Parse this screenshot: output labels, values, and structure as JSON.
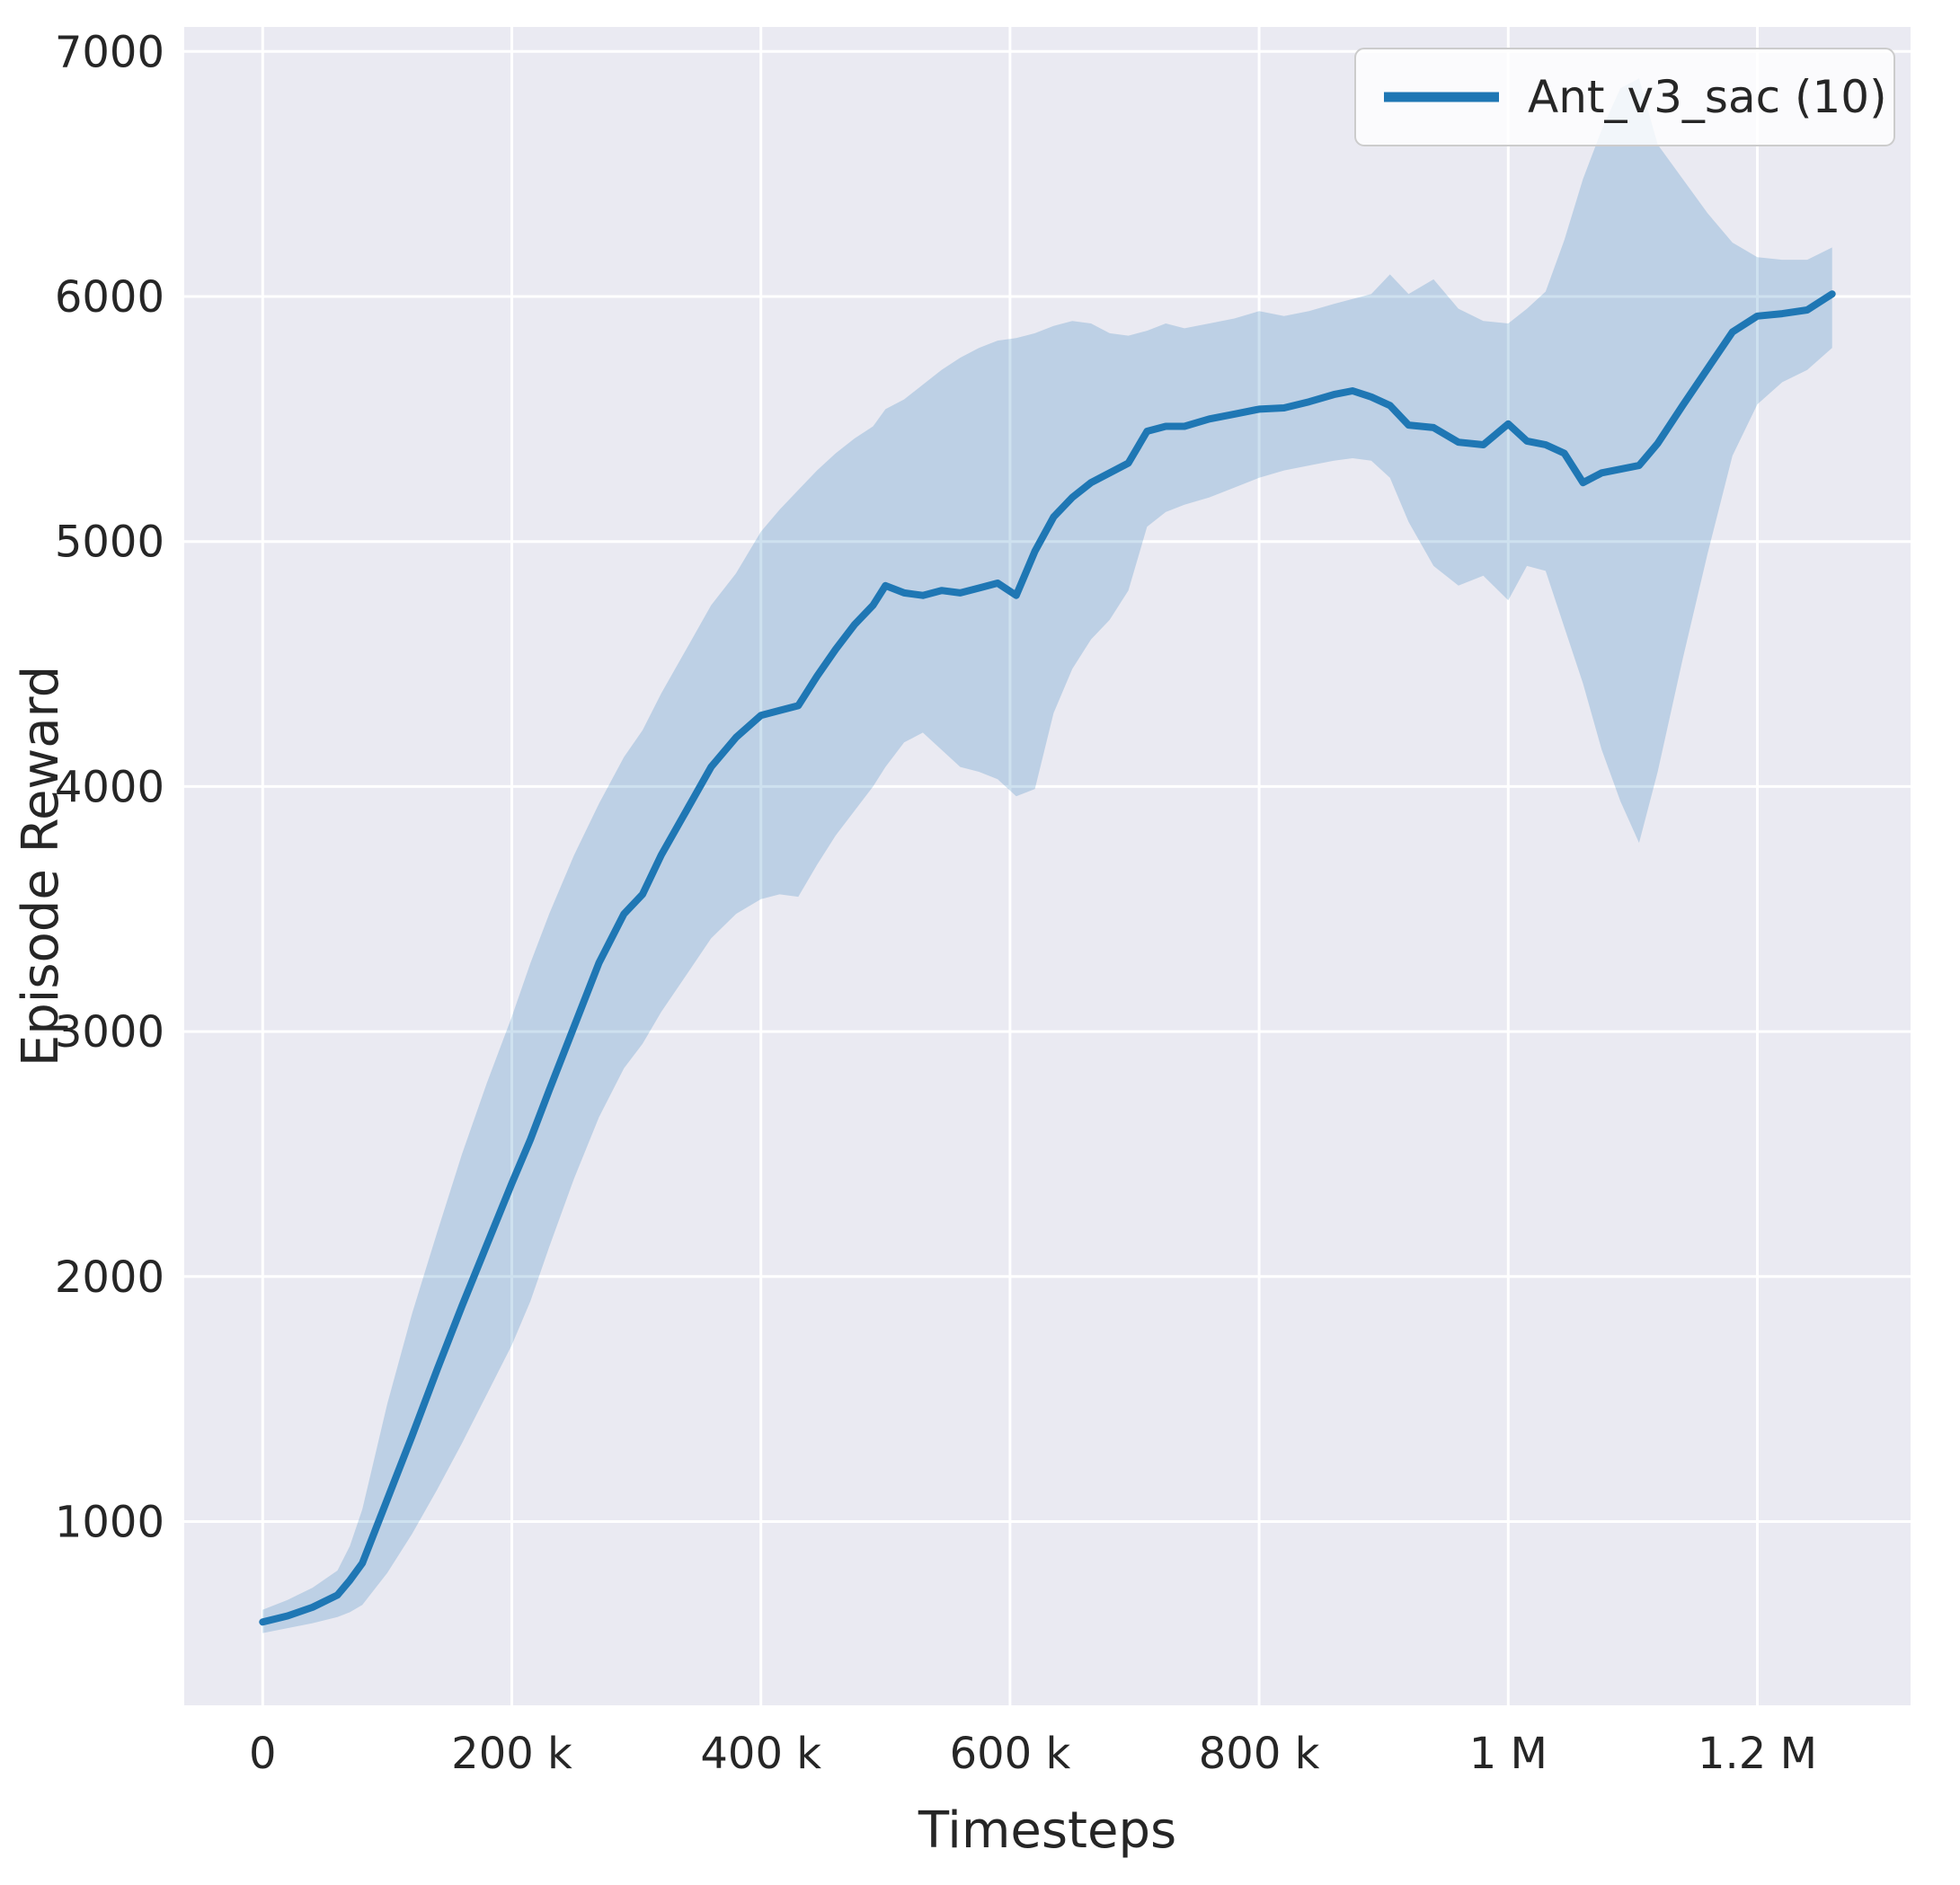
{
  "figure": {
    "background": "#ffffff",
    "axes_background": "#eaeaf2",
    "grid_color": "#ffffff",
    "text_color": "#262626"
  },
  "chart_data": {
    "type": "line",
    "xlabel": "Timesteps",
    "ylabel": "Episode Reward",
    "grid": true,
    "legend_position": "upper right",
    "legend": [
      {
        "label": "Ant_v3_sac (10)",
        "color": "#1f77b4"
      }
    ],
    "xlim": [
      -63000,
      1323000
    ],
    "ylim": [
      250,
      7100
    ],
    "xticks": [
      {
        "value": 0,
        "label": "0"
      },
      {
        "value": 200000,
        "label": "200 k"
      },
      {
        "value": 400000,
        "label": "400 k"
      },
      {
        "value": 600000,
        "label": "600 k"
      },
      {
        "value": 800000,
        "label": "800 k"
      },
      {
        "value": 1000000,
        "label": "1 M"
      },
      {
        "value": 1200000,
        "label": "1.2 M"
      }
    ],
    "yticks": [
      {
        "value": 1000,
        "label": "1000"
      },
      {
        "value": 2000,
        "label": "2000"
      },
      {
        "value": 3000,
        "label": "3000"
      },
      {
        "value": 4000,
        "label": "4000"
      },
      {
        "value": 5000,
        "label": "5000"
      },
      {
        "value": 6000,
        "label": "6000"
      },
      {
        "value": 7000,
        "label": "7000"
      }
    ],
    "series": [
      {
        "name": "Ant_v3_sac (10)",
        "color": "#1f77b4",
        "band_opacity": 0.22,
        "line_width": 8,
        "x": [
          0,
          20000,
          40000,
          60000,
          70000,
          80000,
          100000,
          120000,
          140000,
          160000,
          180000,
          200000,
          215000,
          230000,
          250000,
          270000,
          290000,
          305000,
          320000,
          340000,
          360000,
          380000,
          400000,
          415000,
          430000,
          445000,
          460000,
          475000,
          490000,
          500000,
          515000,
          530000,
          545000,
          560000,
          575000,
          590000,
          605000,
          620000,
          635000,
          650000,
          665000,
          680000,
          695000,
          710000,
          725000,
          740000,
          760000,
          780000,
          800000,
          820000,
          840000,
          860000,
          875000,
          890000,
          905000,
          920000,
          940000,
          960000,
          980000,
          1000000,
          1015000,
          1030000,
          1045000,
          1060000,
          1075000,
          1090000,
          1105000,
          1120000,
          1140000,
          1160000,
          1180000,
          1200000,
          1220000,
          1240000,
          1260000
        ],
        "mean": [
          590,
          615,
          650,
          700,
          760,
          830,
          1090,
          1350,
          1620,
          1880,
          2130,
          2380,
          2560,
          2760,
          3020,
          3280,
          3480,
          3560,
          3720,
          3900,
          4080,
          4200,
          4290,
          4310,
          4330,
          4450,
          4560,
          4660,
          4740,
          4820,
          4790,
          4780,
          4800,
          4790,
          4810,
          4830,
          4780,
          4960,
          5100,
          5180,
          5240,
          5280,
          5320,
          5450,
          5470,
          5470,
          5500,
          5520,
          5540,
          5545,
          5570,
          5600,
          5615,
          5590,
          5555,
          5475,
          5465,
          5405,
          5395,
          5480,
          5410,
          5395,
          5360,
          5240,
          5280,
          5295,
          5310,
          5400,
          5555,
          5705,
          5855,
          5920,
          5930,
          5945,
          6010
        ],
        "lower": [
          545,
          565,
          585,
          610,
          630,
          660,
          790,
          950,
          1130,
          1320,
          1520,
          1720,
          1900,
          2120,
          2400,
          2650,
          2850,
          2950,
          3080,
          3230,
          3380,
          3480,
          3540,
          3560,
          3550,
          3680,
          3800,
          3900,
          4000,
          4080,
          4180,
          4220,
          4150,
          4080,
          4060,
          4030,
          3960,
          3990,
          4300,
          4480,
          4600,
          4680,
          4800,
          5060,
          5120,
          5150,
          5180,
          5220,
          5260,
          5290,
          5310,
          5330,
          5340,
          5330,
          5260,
          5080,
          4900,
          4820,
          4860,
          4760,
          4900,
          4880,
          4650,
          4420,
          4150,
          3940,
          3770,
          4060,
          4520,
          4950,
          5350,
          5560,
          5650,
          5700,
          5790
        ],
        "upper": [
          640,
          680,
          730,
          800,
          900,
          1050,
          1480,
          1850,
          2180,
          2500,
          2790,
          3060,
          3280,
          3480,
          3720,
          3930,
          4120,
          4230,
          4380,
          4560,
          4740,
          4870,
          5040,
          5130,
          5210,
          5290,
          5360,
          5420,
          5470,
          5540,
          5580,
          5640,
          5700,
          5750,
          5790,
          5820,
          5830,
          5850,
          5880,
          5900,
          5890,
          5850,
          5840,
          5860,
          5890,
          5870,
          5890,
          5910,
          5940,
          5920,
          5940,
          5970,
          5990,
          6010,
          6090,
          6010,
          6070,
          5950,
          5900,
          5890,
          5950,
          6020,
          6230,
          6480,
          6680,
          6850,
          6890,
          6620,
          6480,
          6340,
          6220,
          6160,
          6150,
          6150,
          6200
        ]
      }
    ]
  }
}
